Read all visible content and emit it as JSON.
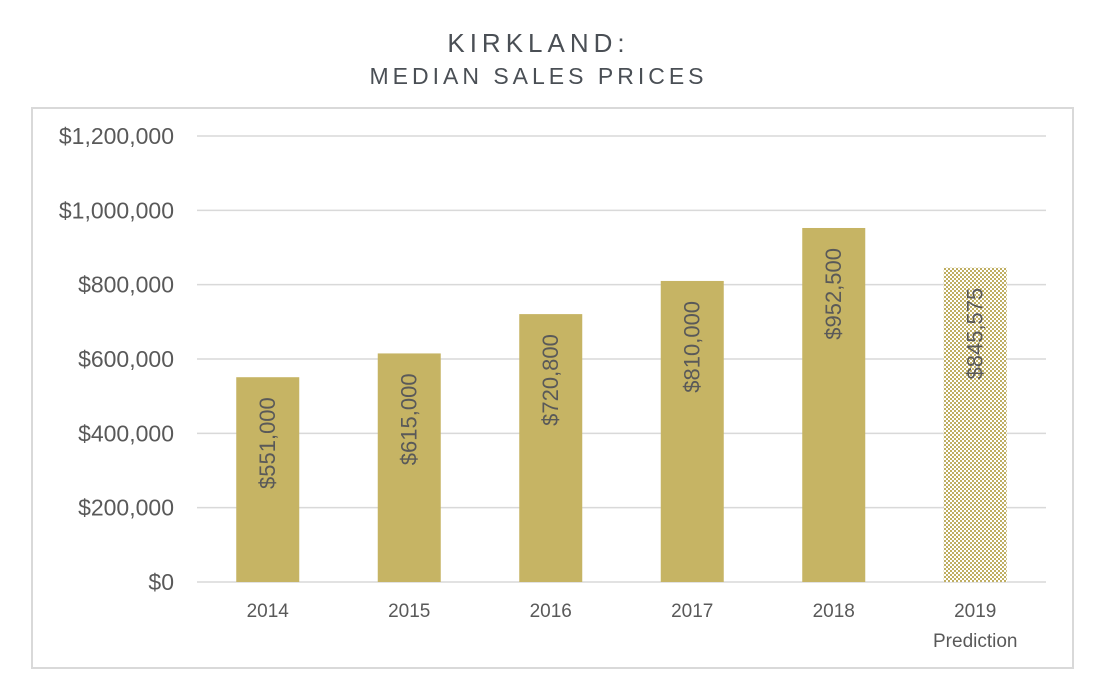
{
  "chart_title": {
    "line1": "KIRKLAND:",
    "line2": "MEDIAN SALES PRICES"
  },
  "colors": {
    "bar": "#c6b464",
    "pattern_dot": "#bfae62",
    "grid": "#d9d9d9",
    "text": "#595959",
    "label": "#595959"
  },
  "chart_data": {
    "type": "bar",
    "title": "KIRKLAND: MEDIAN SALES PRICES",
    "categories": [
      "2014",
      "2015",
      "2016",
      "2017",
      "2018",
      "2019"
    ],
    "category_sublabels": [
      "",
      "",
      "",
      "",
      "",
      "Prediction"
    ],
    "values": [
      551000,
      615000,
      720800,
      810000,
      952500,
      845575
    ],
    "value_labels": [
      "$551,000",
      "$615,000",
      "$720,800",
      "$810,000",
      "$952,500",
      "$845,575"
    ],
    "patterned": [
      false,
      false,
      false,
      false,
      false,
      true
    ],
    "ylim": [
      0,
      1200000
    ],
    "yticks": [
      0,
      200000,
      400000,
      600000,
      800000,
      1000000,
      1200000
    ],
    "ytick_labels": [
      "$0",
      "$200,000",
      "$400,000",
      "$600,000",
      "$800,000",
      "$1,000,000",
      "$1,200,000"
    ],
    "xlabel": "",
    "ylabel": "",
    "grid": true
  }
}
